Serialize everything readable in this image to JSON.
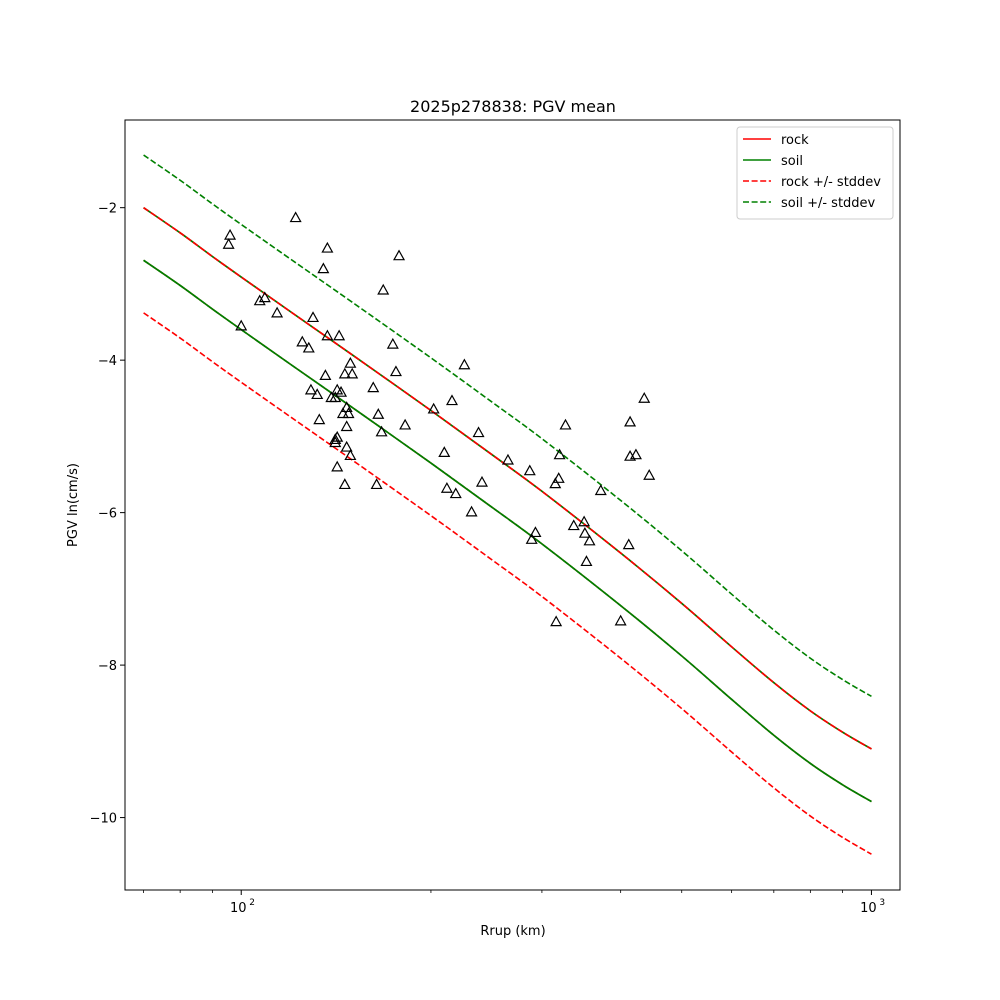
{
  "chart_data": {
    "type": "line",
    "title": "2025p278838: PGV mean",
    "xlabel": "Rrup (km)",
    "ylabel": "PGV ln(cm/s)",
    "xscale": "log",
    "xlim": [
      65.4,
      1110
    ],
    "ylim": [
      -10.95,
      -0.85
    ],
    "x_ticks": [
      {
        "value": 100,
        "label": "10",
        "sup": "2"
      },
      {
        "value": 1000,
        "label": "10",
        "sup": "3"
      }
    ],
    "y_ticks": [
      {
        "value": -2,
        "label": "−2"
      },
      {
        "value": -4,
        "label": "−4"
      },
      {
        "value": -6,
        "label": "−6"
      },
      {
        "value": -8,
        "label": "−8"
      },
      {
        "value": -10,
        "label": "−10"
      }
    ],
    "grid": false,
    "legend_position": "top-right",
    "curve_x": [
      70,
      80,
      90,
      100,
      120,
      150,
      200,
      250,
      300,
      400,
      500,
      600,
      700,
      800,
      900,
      1000
    ],
    "series": [
      {
        "name": "rock",
        "style": "solid",
        "color": "#ff0000",
        "values": [
          -2.0,
          -2.33,
          -2.64,
          -2.91,
          -3.37,
          -3.93,
          -4.66,
          -5.24,
          -5.72,
          -6.53,
          -7.19,
          -7.76,
          -8.23,
          -8.6,
          -8.88,
          -9.1
        ]
      },
      {
        "name": "soil",
        "style": "solid",
        "color": "#008000",
        "values": [
          -2.0,
          -2.33,
          -2.64,
          -2.91,
          -3.37,
          -3.93,
          -4.66,
          -5.24,
          -5.72,
          -6.53,
          -7.19,
          -7.76,
          -8.23,
          -8.6,
          -8.88,
          -9.1
        ]
      },
      {
        "name": "rock",
        "style": "solid",
        "color": "#ff0000",
        "legend": false,
        "values": [
          -2.69,
          -3.02,
          -3.33,
          -3.6,
          -4.06,
          -4.62,
          -5.35,
          -5.93,
          -6.41,
          -7.22,
          -7.88,
          -8.45,
          -8.92,
          -9.29,
          -9.57,
          -9.79
        ]
      },
      {
        "name": "soil",
        "style": "solid",
        "color": "#008000",
        "legend": false,
        "values": [
          -2.69,
          -3.02,
          -3.33,
          -3.6,
          -4.06,
          -4.62,
          -5.35,
          -5.93,
          -6.41,
          -7.22,
          -7.88,
          -8.45,
          -8.92,
          -9.29,
          -9.57,
          -9.79
        ]
      },
      {
        "name": "rock +/- stddev",
        "style": "dashed",
        "color": "#ff0000",
        "values": [
          -2.0,
          -2.33,
          -2.64,
          -2.91,
          -3.37,
          -3.93,
          -4.66,
          -5.24,
          -5.72,
          -6.53,
          -7.19,
          -7.76,
          -8.23,
          -8.6,
          -8.88,
          -9.1
        ]
      },
      {
        "name": "rock +/- stddev",
        "style": "dashed",
        "color": "#ff0000",
        "legend": false,
        "values": [
          -3.38,
          -3.71,
          -4.02,
          -4.29,
          -4.75,
          -5.31,
          -6.04,
          -6.62,
          -7.1,
          -7.91,
          -8.57,
          -9.14,
          -9.61,
          -9.98,
          -10.26,
          -10.48
        ]
      },
      {
        "name": "soil +/- stddev",
        "style": "dashed",
        "color": "#008000",
        "values": [
          -1.31,
          -1.64,
          -1.95,
          -2.22,
          -2.68,
          -3.24,
          -3.97,
          -4.55,
          -5.03,
          -5.84,
          -6.5,
          -7.07,
          -7.54,
          -7.91,
          -8.19,
          -8.41
        ]
      },
      {
        "name": "soil +/- stddev",
        "style": "dashed",
        "color": "#008000",
        "legend": false,
        "values": [
          -2.69,
          -3.02,
          -3.33,
          -3.6,
          -4.06,
          -4.62,
          -5.35,
          -5.93,
          -6.41,
          -7.22,
          -7.88,
          -8.45,
          -8.92,
          -9.29,
          -9.57,
          -9.79
        ]
      }
    ],
    "observations": [
      [
        96,
        -2.36
      ],
      [
        95.5,
        -2.48
      ],
      [
        100,
        -3.55
      ],
      [
        107,
        -3.22
      ],
      [
        109,
        -3.18
      ],
      [
        114,
        -3.38
      ],
      [
        122,
        -2.13
      ],
      [
        125,
        -3.76
      ],
      [
        128,
        -3.84
      ],
      [
        130,
        -3.44
      ],
      [
        129,
        -4.39
      ],
      [
        132,
        -4.45
      ],
      [
        135,
        -2.8
      ],
      [
        133,
        -4.78
      ],
      [
        137,
        -2.53
      ],
      [
        137,
        -3.68
      ],
      [
        136,
        -4.2
      ],
      [
        139,
        -4.49
      ],
      [
        141,
        -4.49
      ],
      [
        142,
        -4.39
      ],
      [
        143,
        -3.68
      ],
      [
        144,
        -4.42
      ],
      [
        146,
        -4.18
      ],
      [
        145,
        -4.7
      ],
      [
        147,
        -4.62
      ],
      [
        148,
        -4.7
      ],
      [
        147,
        -4.87
      ],
      [
        149,
        -4.04
      ],
      [
        150,
        -4.18
      ],
      [
        147,
        -5.14
      ],
      [
        149,
        -5.25
      ],
      [
        141,
        -5.04
      ],
      [
        142,
        -5.01
      ],
      [
        141,
        -5.08
      ],
      [
        142,
        -5.4
      ],
      [
        146,
        -5.63
      ],
      [
        162,
        -4.36
      ],
      [
        165,
        -4.71
      ],
      [
        167,
        -4.94
      ],
      [
        168,
        -3.08
      ],
      [
        174,
        -3.79
      ],
      [
        176,
        -4.15
      ],
      [
        178,
        -2.63
      ],
      [
        182,
        -4.85
      ],
      [
        164,
        -5.63
      ],
      [
        202,
        -4.64
      ],
      [
        210,
        -5.21
      ],
      [
        212,
        -5.68
      ],
      [
        216,
        -4.53
      ],
      [
        219,
        -5.75
      ],
      [
        226,
        -4.06
      ],
      [
        232,
        -5.99
      ],
      [
        238,
        -4.95
      ],
      [
        241,
        -5.6
      ],
      [
        265,
        -5.31
      ],
      [
        287,
        -5.45
      ],
      [
        289,
        -6.35
      ],
      [
        293,
        -6.26
      ],
      [
        315,
        -5.62
      ],
      [
        316,
        -7.43
      ],
      [
        319,
        -5.55
      ],
      [
        320,
        -5.24
      ],
      [
        327,
        -4.85
      ],
      [
        337,
        -6.17
      ],
      [
        350,
        -6.12
      ],
      [
        351,
        -6.27
      ],
      [
        353,
        -6.64
      ],
      [
        357,
        -6.37
      ],
      [
        372,
        -5.71
      ],
      [
        400,
        -7.42
      ],
      [
        412,
        -6.42
      ],
      [
        414,
        -5.26
      ],
      [
        414,
        -4.81
      ],
      [
        423,
        -5.24
      ],
      [
        436,
        -4.5
      ],
      [
        444,
        -5.51
      ]
    ]
  }
}
